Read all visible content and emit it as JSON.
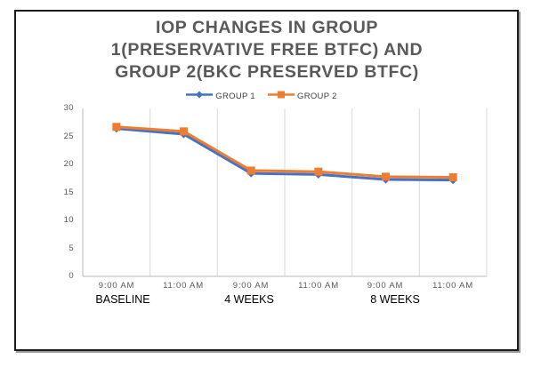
{
  "chart_data": {
    "type": "line",
    "title": "IOP CHANGES IN GROUP 1(PRESERVATIVE FREE BTFC) AND GROUP 2(BKC PRESERVED BTFC)",
    "title_lines": [
      "IOP CHANGES IN GROUP",
      "1(PRESERVATIVE FREE BTFC) AND",
      "GROUP 2(BKC PRESERVED BTFC)"
    ],
    "categories": [
      "9:00 AM",
      "11:00 AM",
      "9:00 AM",
      "11:00 AM",
      "9:00 AM",
      "11:00 AM"
    ],
    "category_group_labels": [
      "BASELINE",
      "4 WEEKS",
      "8 WEEKS"
    ],
    "series": [
      {
        "name": "GROUP 1",
        "color": "#4472C4",
        "marker": "diamond",
        "values": [
          26.4,
          25.4,
          18.4,
          18.2,
          17.3,
          17.2
        ]
      },
      {
        "name": "GROUP 2",
        "color": "#ED7D31",
        "marker": "square",
        "values": [
          26.7,
          25.9,
          18.9,
          18.7,
          17.8,
          17.7
        ]
      }
    ],
    "xlabel": "",
    "ylabel": "",
    "ylim": [
      0,
      30
    ],
    "yticks": [
      0,
      5,
      10,
      15,
      20,
      25,
      30
    ],
    "grid": "vertical-only",
    "legend_position": "top-center",
    "colors": {
      "title": "#595959",
      "tick_labels": "#595959",
      "group_labels": "#000000",
      "gridlines": "#D9D9D9",
      "axis_lines": "#C6C6C6"
    }
  }
}
